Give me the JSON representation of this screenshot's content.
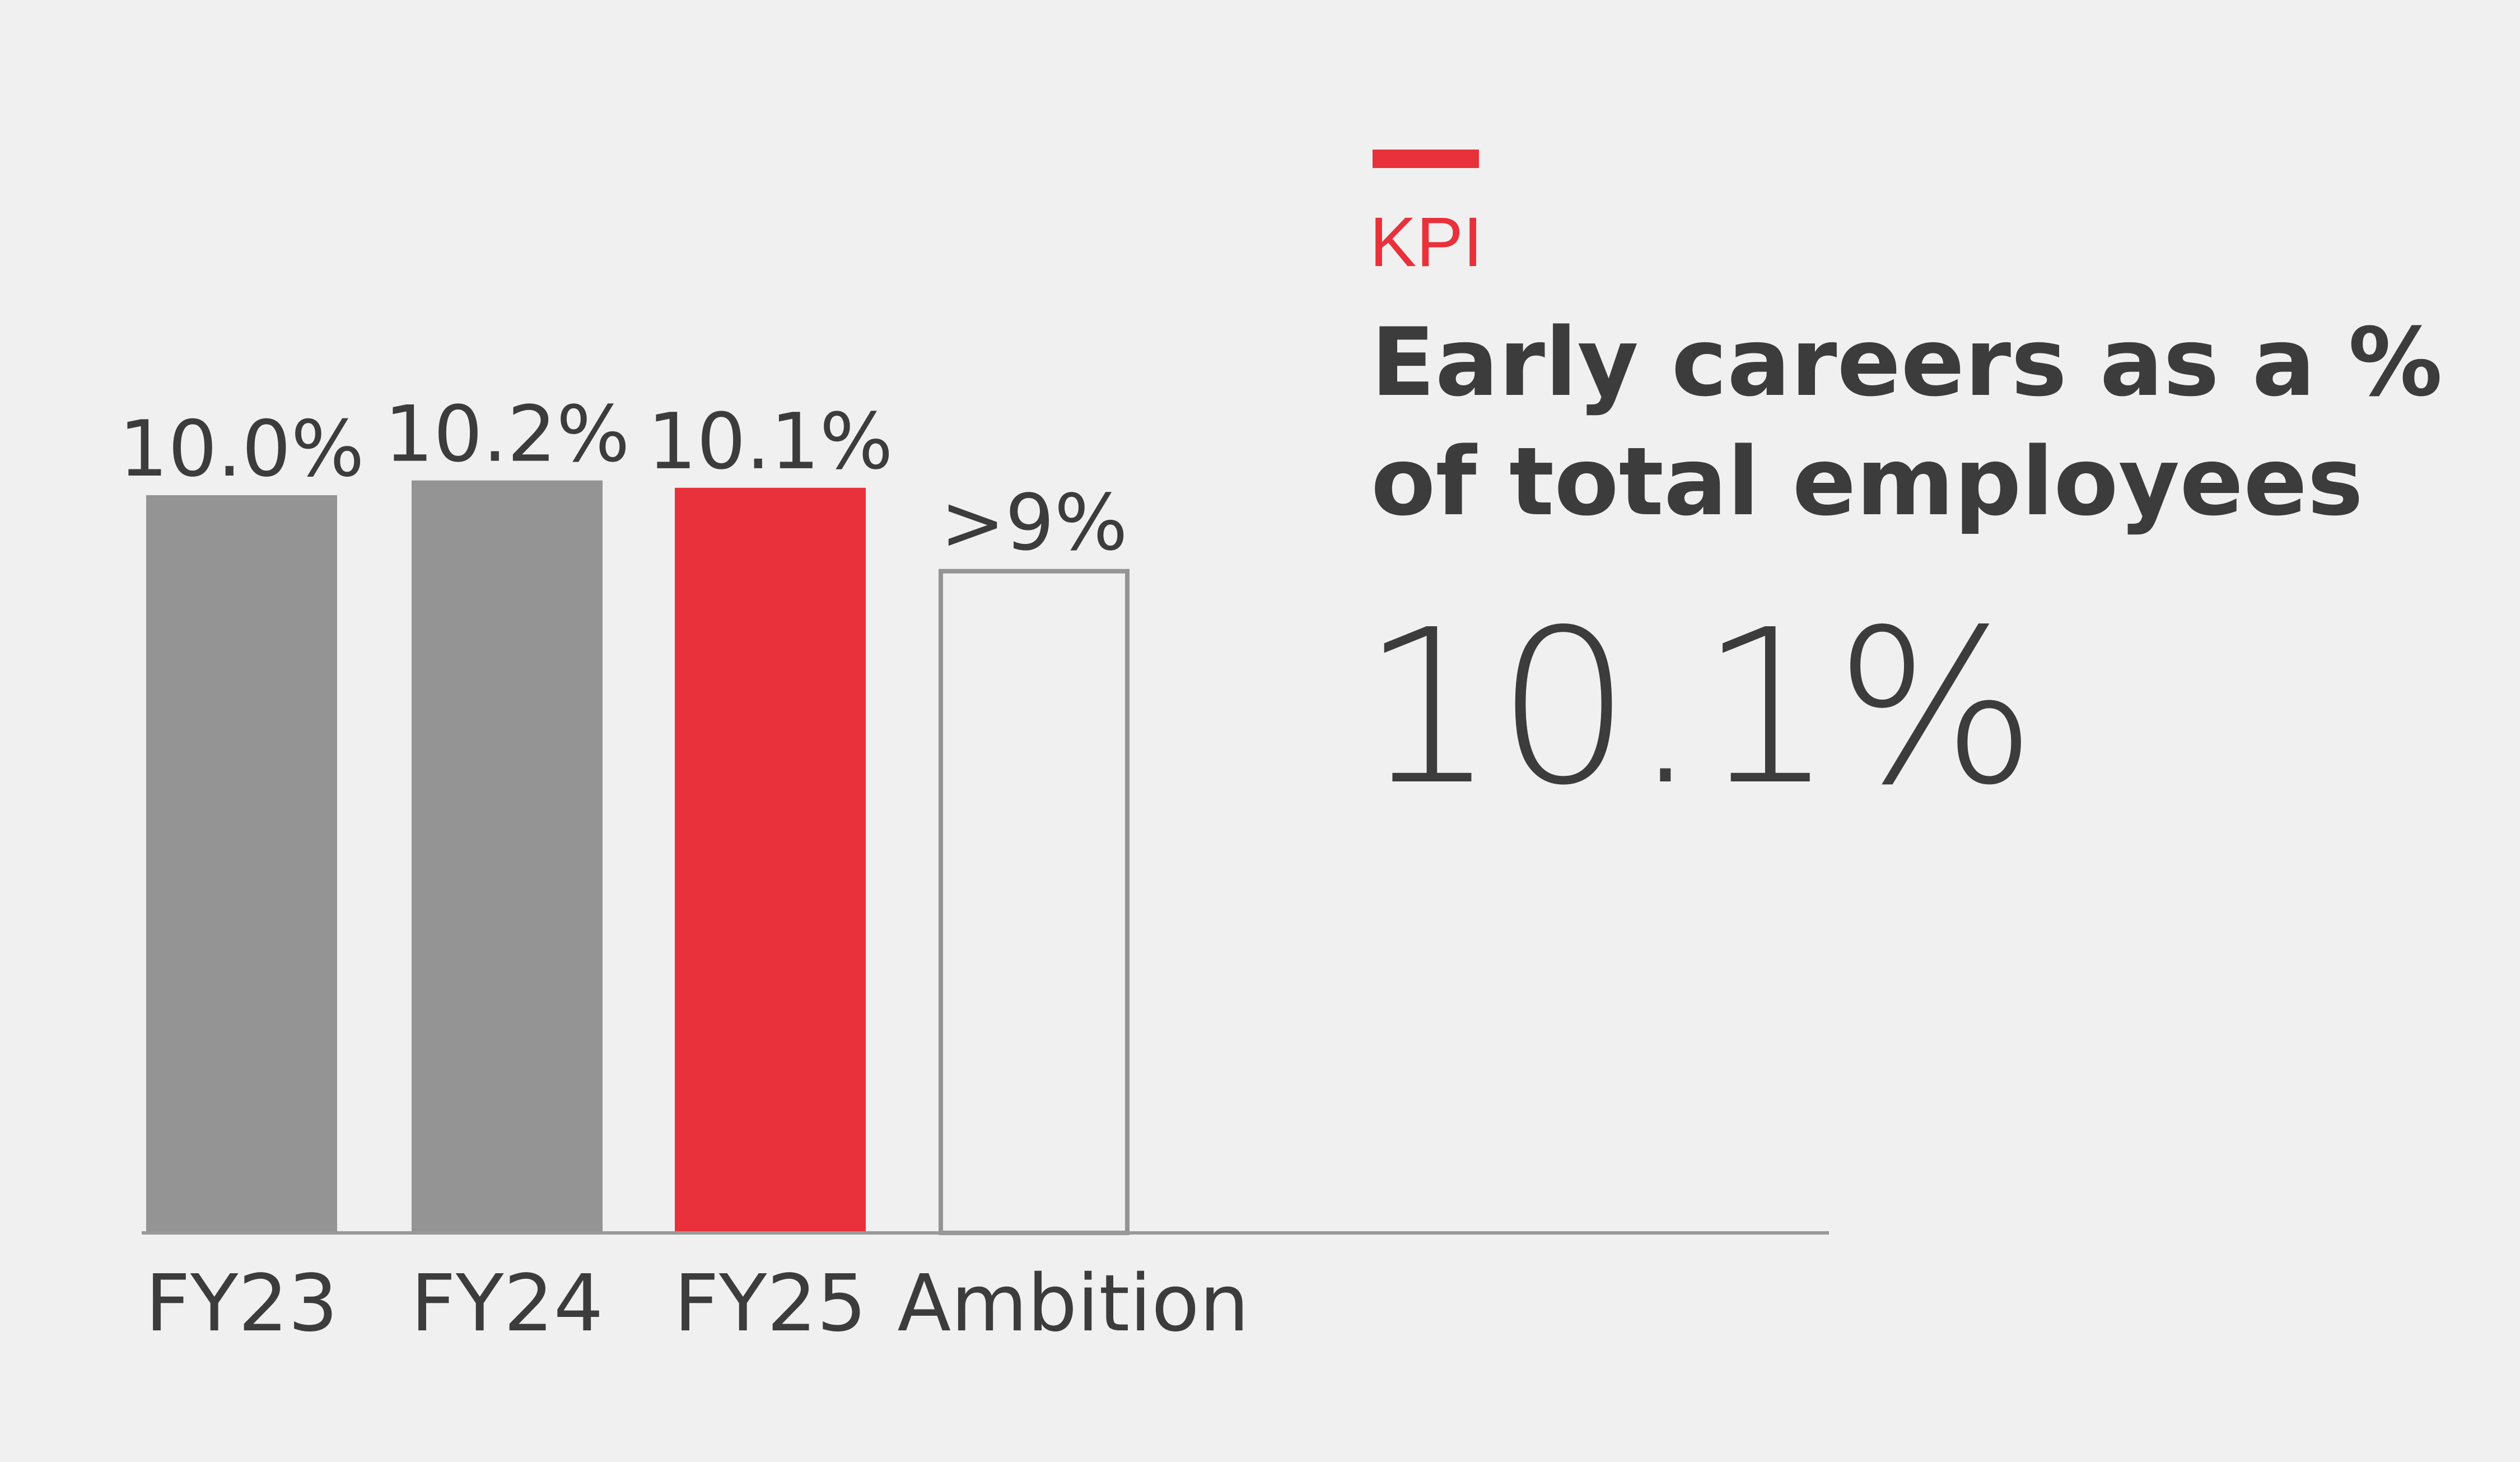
{
  "colors": {
    "background": "#f0f0f0",
    "past": "#949494",
    "current": "#e8313a",
    "ambition_outline": "#949494",
    "text": "#3c3c3c",
    "kpi": "#e8313a"
  },
  "kpi_label": "KPI",
  "title_line1": "Early careers as a %",
  "title_line2": "of total employees",
  "headline_value": "10.1%",
  "chart_data": {
    "type": "bar",
    "categories": [
      "FY23",
      "FY24",
      "FY25",
      "Ambition"
    ],
    "values": [
      10.0,
      10.2,
      10.1,
      9
    ],
    "data_labels": [
      "10.0%",
      "10.2%",
      "10.1%",
      ">9%"
    ],
    "styles": [
      "filled-grey",
      "filled-grey",
      "filled-red",
      "outline"
    ],
    "title": "Early careers as a % of total employees",
    "xlabel": "",
    "ylabel": "",
    "ylim": [
      0,
      16.7
    ],
    "grid": false
  }
}
